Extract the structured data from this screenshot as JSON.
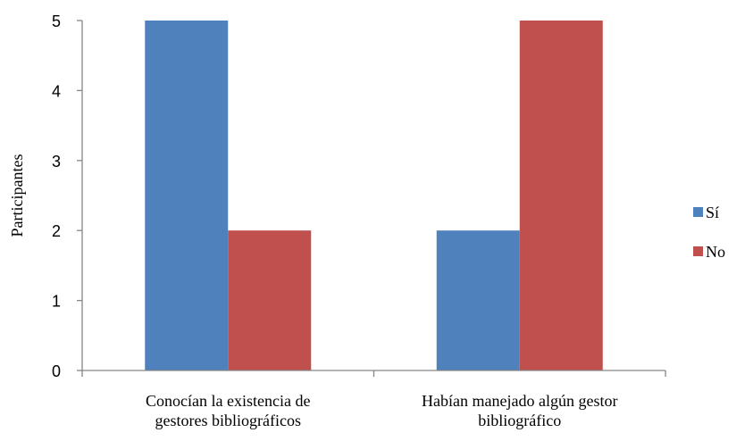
{
  "chart_data": {
    "type": "bar",
    "categories": [
      [
        "Conocían la existencia de",
        "gestores bibliográficos"
      ],
      [
        "Habían manejado algún gestor",
        "bibliográfico"
      ]
    ],
    "series": [
      {
        "name": "Sí",
        "color": "#4F81BD",
        "values": [
          5,
          2
        ]
      },
      {
        "name": "No",
        "color": "#C0504D",
        "values": [
          2,
          5
        ]
      }
    ],
    "title": "",
    "xlabel": "",
    "ylabel": "Participantes",
    "ylim": [
      0,
      5
    ],
    "yticks": [
      0,
      1,
      2,
      3,
      4,
      5
    ],
    "grid": false,
    "legend": "right"
  }
}
